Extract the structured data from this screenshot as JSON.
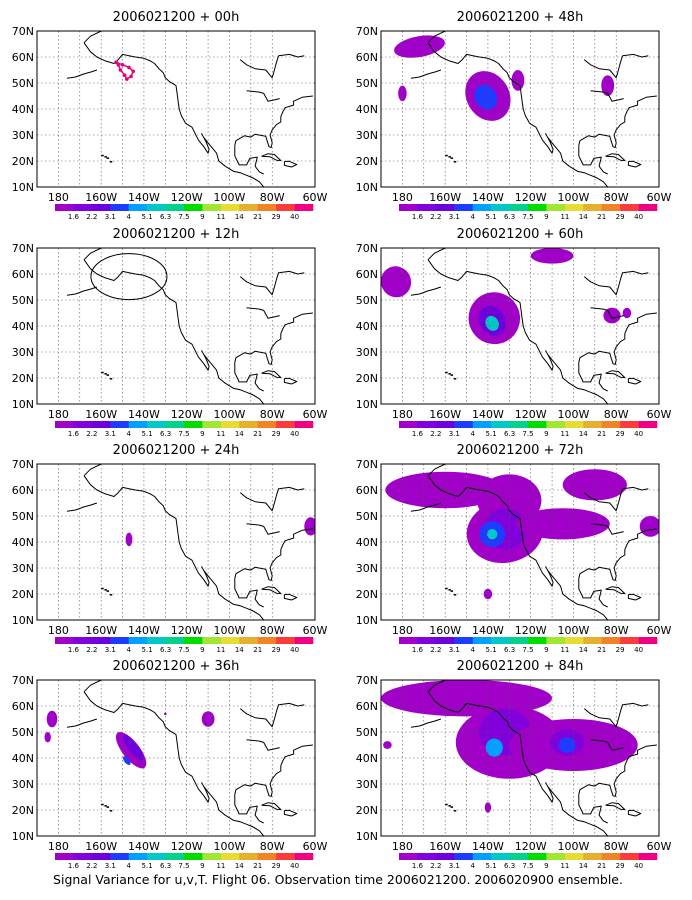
{
  "figure": {
    "caption": "Signal Variance for u,v,T. Flight 06. Observation time 2006021200. 2006020900 ensemble.",
    "lat_labels": [
      "70N",
      "60N",
      "50N",
      "40N",
      "30N",
      "20N",
      "10N"
    ],
    "lon_labels": [
      "180",
      "160W",
      "140W",
      "120W",
      "100W",
      "80W",
      "60W"
    ],
    "colorbar": {
      "labels": [
        "1.6",
        "2.2",
        "3.1",
        "4",
        "5.1",
        "6.3",
        "7.5",
        "9",
        "11",
        "14",
        "21",
        "29",
        "40"
      ],
      "colors": [
        "#a000c8",
        "#8200dc",
        "#6e00dc",
        "#1e3cff",
        "#00a0ff",
        "#00c8c8",
        "#00d28c",
        "#00dc00",
        "#a0e632",
        "#e6dc32",
        "#e6af2d",
        "#f08228",
        "#fa3c3c",
        "#f00082"
      ]
    },
    "panels": [
      {
        "id": "p00",
        "title": "2006021200 + 00h",
        "col": 0,
        "row": 0
      },
      {
        "id": "p12",
        "title": "2006021200 + 12h",
        "col": 0,
        "row": 1
      },
      {
        "id": "p24",
        "title": "2006021200 + 24h",
        "col": 0,
        "row": 2
      },
      {
        "id": "p36",
        "title": "2006021200 + 36h",
        "col": 0,
        "row": 3
      },
      {
        "id": "p48",
        "title": "2006021200 + 48h",
        "col": 1,
        "row": 0
      },
      {
        "id": "p60",
        "title": "2006021200 + 60h",
        "col": 1,
        "row": 1
      },
      {
        "id": "p72",
        "title": "2006021200 + 72h",
        "col": 1,
        "row": 2
      },
      {
        "id": "p84",
        "title": "2006021200 + 84h",
        "col": 1,
        "row": 3
      }
    ]
  }
}
